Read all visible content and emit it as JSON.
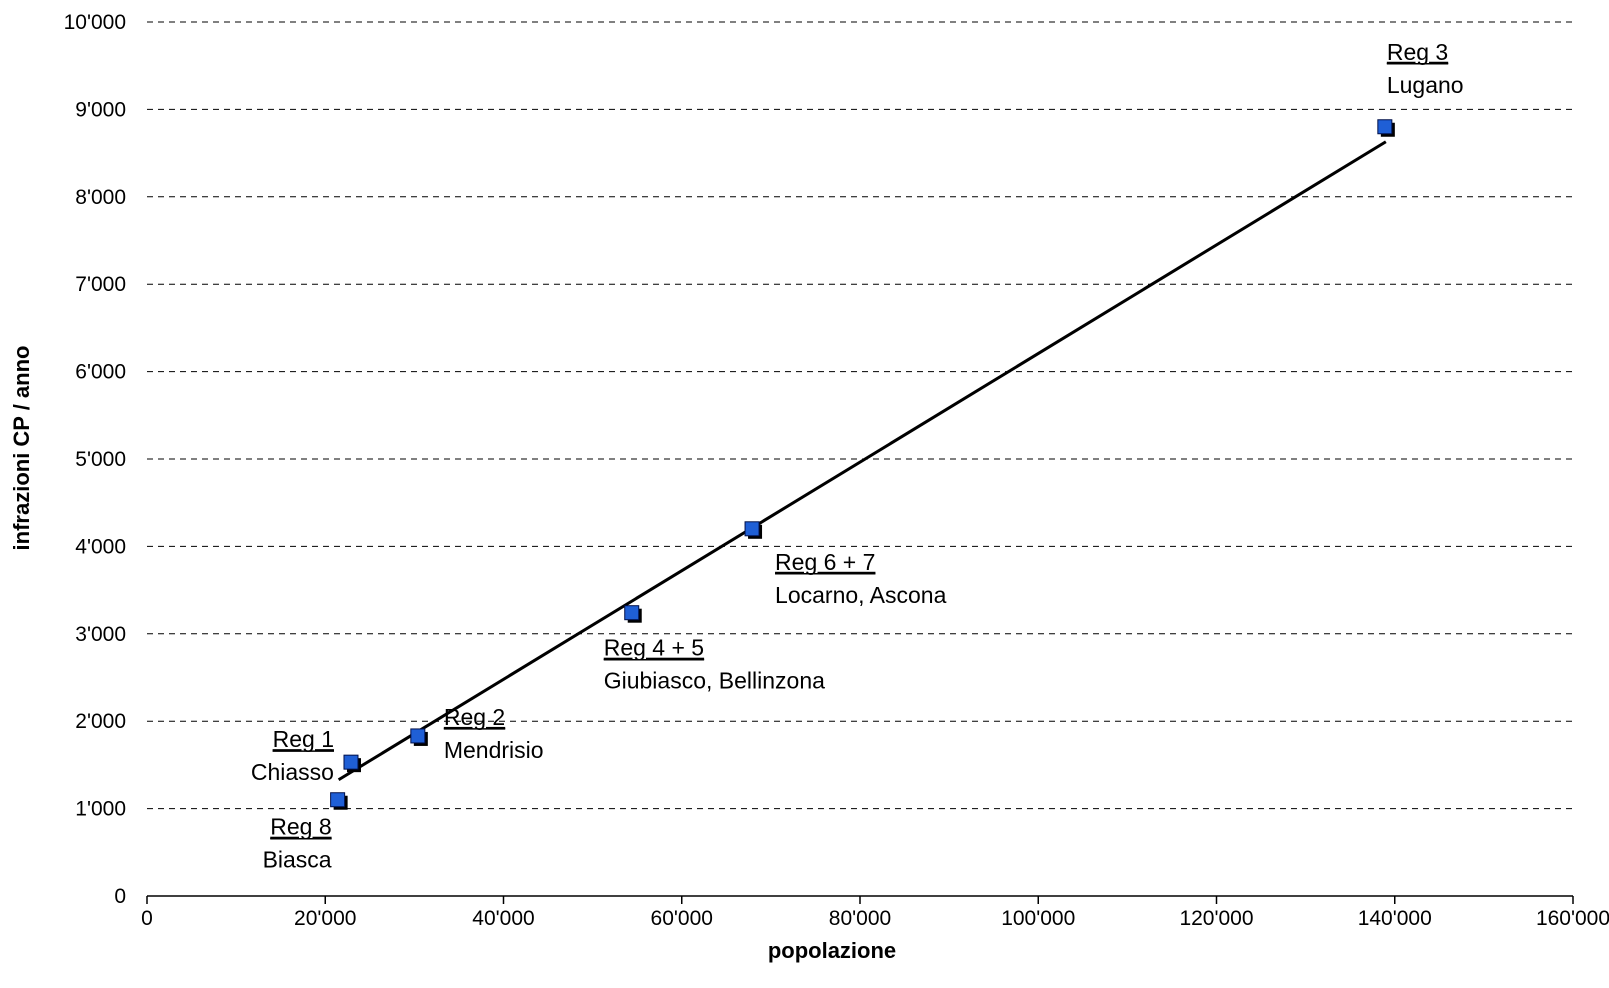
{
  "chart_data": {
    "type": "scatter",
    "xlabel": "popolazione",
    "ylabel": "infrazioni CP / anno",
    "xlim": [
      0,
      160000
    ],
    "ylim": [
      0,
      10000
    ],
    "x_ticks": [
      "0",
      "20'000",
      "40'000",
      "60'000",
      "80'000",
      "100'000",
      "120'000",
      "140'000",
      "160'000"
    ],
    "y_ticks": [
      "0",
      "1'000",
      "2'000",
      "3'000",
      "4'000",
      "5'000",
      "6'000",
      "7'000",
      "8'000",
      "9'000",
      "10'000"
    ],
    "grid": "horizontal dashed",
    "marker_color": "#1f5fd6",
    "trendline": {
      "x": [
        21500,
        139000
      ],
      "y": [
        1330,
        8630
      ]
    },
    "points": [
      {
        "region": "Reg 1",
        "place": "Chiasso",
        "x": 23000,
        "y": 1520
      },
      {
        "region": "Reg 2",
        "place": "Mendrisio",
        "x": 30500,
        "y": 1820
      },
      {
        "region": "Reg 3",
        "place": "Lugano",
        "x": 139000,
        "y": 8790
      },
      {
        "region": "Reg 4 + 5",
        "place": "Giubiasco, Bellinzona",
        "x": 54500,
        "y": 3230
      },
      {
        "region": "Reg 6 + 7",
        "place": "Locarno, Ascona",
        "x": 68000,
        "y": 4190
      },
      {
        "region": "Reg 8",
        "place": "Biasca",
        "x": 21500,
        "y": 1090
      }
    ]
  }
}
